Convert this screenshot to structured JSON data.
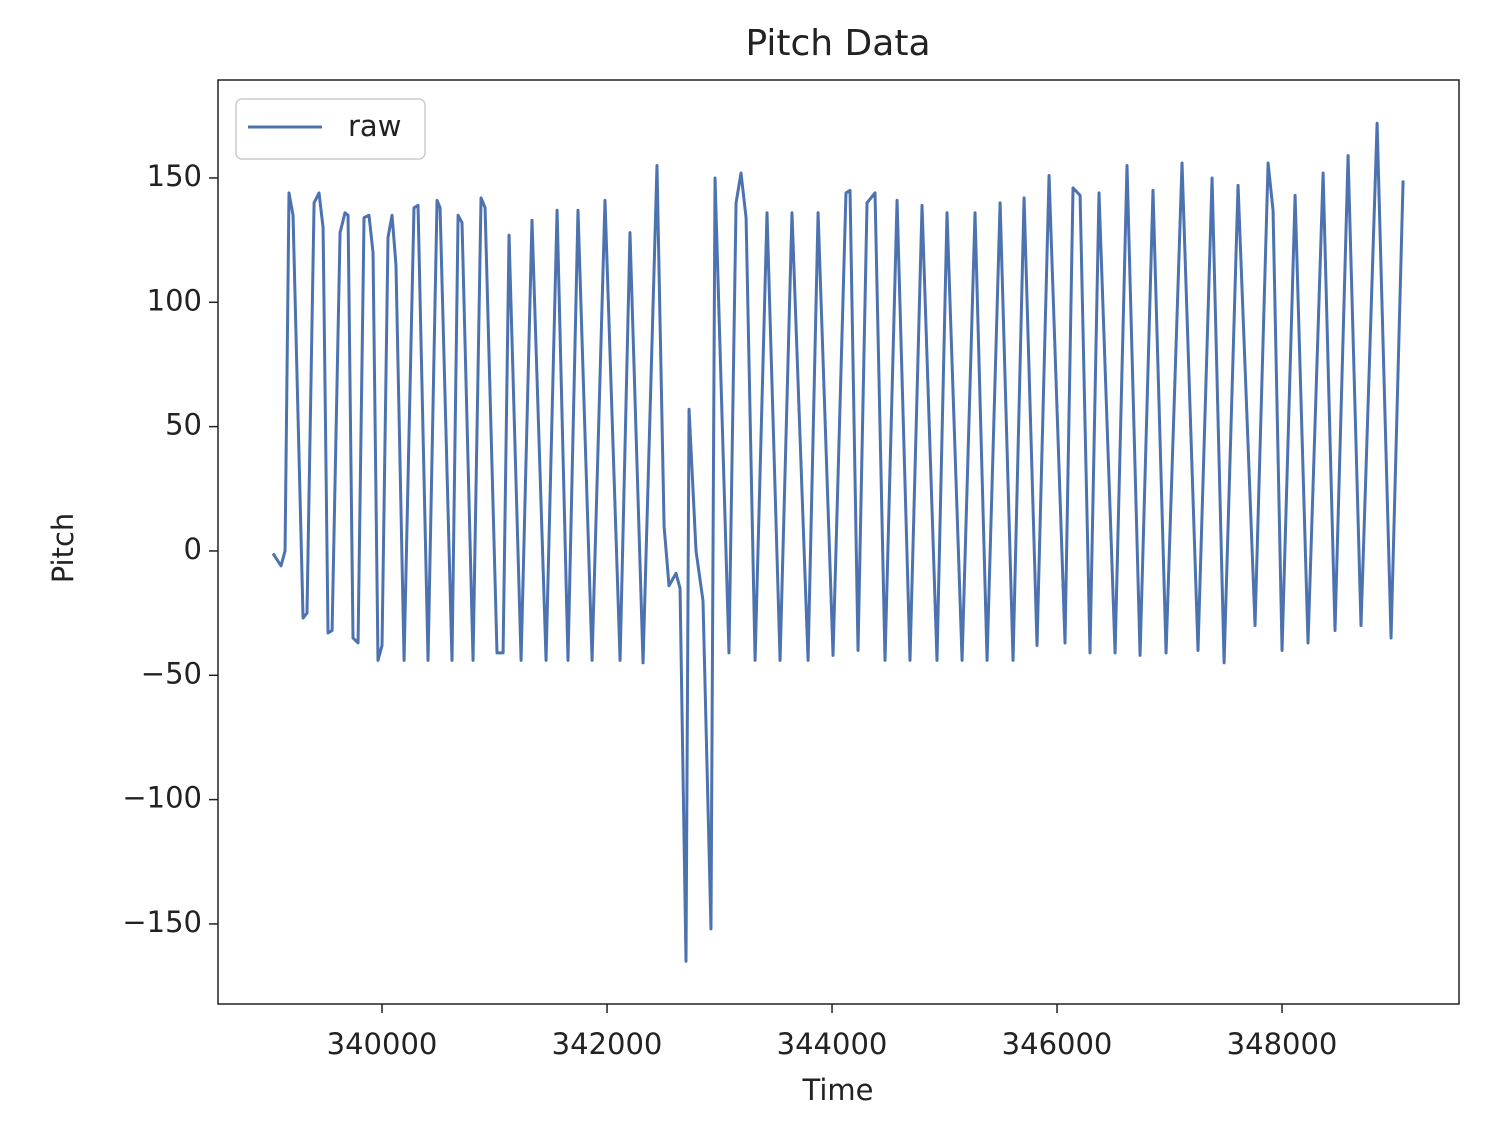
{
  "chart_data": {
    "type": "line",
    "title": "Pitch Data",
    "x_label": "Time",
    "y_label": "Pitch",
    "x": [
      339031,
      339102,
      339138,
      339173,
      339209,
      339298,
      339333,
      339396,
      339440,
      339476,
      339520,
      339556,
      339627,
      339671,
      339698,
      339742,
      339787,
      339840,
      339884,
      339920,
      339964,
      340000,
      340053,
      340089,
      340124,
      340196,
      340284,
      340320,
      340409,
      340489,
      340516,
      340622,
      340676,
      340711,
      340809,
      340880,
      340916,
      341022,
      341076,
      341129,
      341236,
      341333,
      341458,
      341556,
      341653,
      341742,
      341867,
      341982,
      342116,
      342204,
      342320,
      342444,
      342507,
      342551,
      342613,
      342649,
      342702,
      342729,
      342791,
      342853,
      342924,
      342960,
      343084,
      343147,
      343191,
      343236,
      343316,
      343422,
      343538,
      343644,
      343787,
      343876,
      344009,
      344124,
      344160,
      344231,
      344311,
      344382,
      344471,
      344578,
      344693,
      344800,
      344933,
      345022,
      345156,
      345271,
      345378,
      345494,
      345609,
      345707,
      345822,
      345929,
      346071,
      346142,
      346205,
      346293,
      346373,
      346516,
      346622,
      346738,
      346853,
      346969,
      347111,
      347253,
      347378,
      347485,
      347609,
      347760,
      347876,
      347920,
      348000,
      348116,
      348231,
      348365,
      348471,
      348587,
      348702,
      348845,
      348969,
      349076
    ],
    "series": [
      {
        "name": "raw",
        "color": "#4c72b0",
        "values": [
          -1,
          -6,
          0,
          144,
          135,
          -27,
          -25,
          140,
          144,
          130,
          -33,
          -32,
          128,
          136,
          135,
          -35,
          -37,
          134,
          135,
          120,
          -44,
          -38,
          126,
          135,
          115,
          -44,
          138,
          139,
          -44,
          141,
          138,
          -44,
          135,
          132,
          -44,
          142,
          138,
          -41,
          -41,
          127,
          -44,
          133,
          -44,
          137,
          -44,
          137,
          -44,
          141,
          -44,
          128,
          -45,
          155,
          10,
          -14,
          -9,
          -15,
          -165,
          57,
          0,
          -20,
          -152,
          150,
          -41,
          140,
          152,
          134,
          -44,
          136,
          -44,
          136,
          -44,
          136,
          -42,
          144,
          145,
          -40,
          140,
          144,
          -44,
          141,
          -44,
          139,
          -44,
          136,
          -44,
          136,
          -44,
          140,
          -44,
          142,
          -38,
          151,
          -37,
          146,
          143,
          -41,
          144,
          -41,
          155,
          -42,
          145,
          -41,
          156,
          -40,
          150,
          -45,
          147,
          -30,
          156,
          137,
          -40,
          143,
          -37,
          152,
          -32,
          159,
          -30,
          172,
          -35,
          149
        ]
      }
    ],
    "xlim": [
      338542,
      349573
    ],
    "ylim": [
      -182.2,
      189.4
    ],
    "xticks": [
      340000,
      342000,
      344000,
      346000,
      348000
    ],
    "yticks": [
      {
        "value": -150,
        "label": "−150"
      },
      {
        "value": -100,
        "label": "−100"
      },
      {
        "value": -50,
        "label": "−50"
      },
      0,
      50,
      100,
      150
    ],
    "legend": "upper left",
    "grid": false
  }
}
